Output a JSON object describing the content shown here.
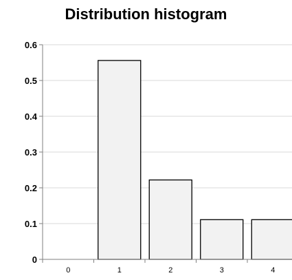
{
  "chart_data": {
    "type": "bar",
    "title": "Distribution histogram",
    "xlabel": "",
    "ylabel": "",
    "categories": [
      "0",
      "1",
      "2",
      "3",
      "4"
    ],
    "values": [
      0,
      0.556,
      0.222,
      0.111,
      0.111
    ],
    "ylim": [
      0,
      0.6
    ],
    "yticks": [
      "0",
      "0.1",
      "0.2",
      "0.3",
      "0.4",
      "0.5",
      "0.6"
    ],
    "grid": true,
    "legend": "none",
    "bar_fill": "#f2f2f2",
    "bar_stroke": "#000000"
  }
}
